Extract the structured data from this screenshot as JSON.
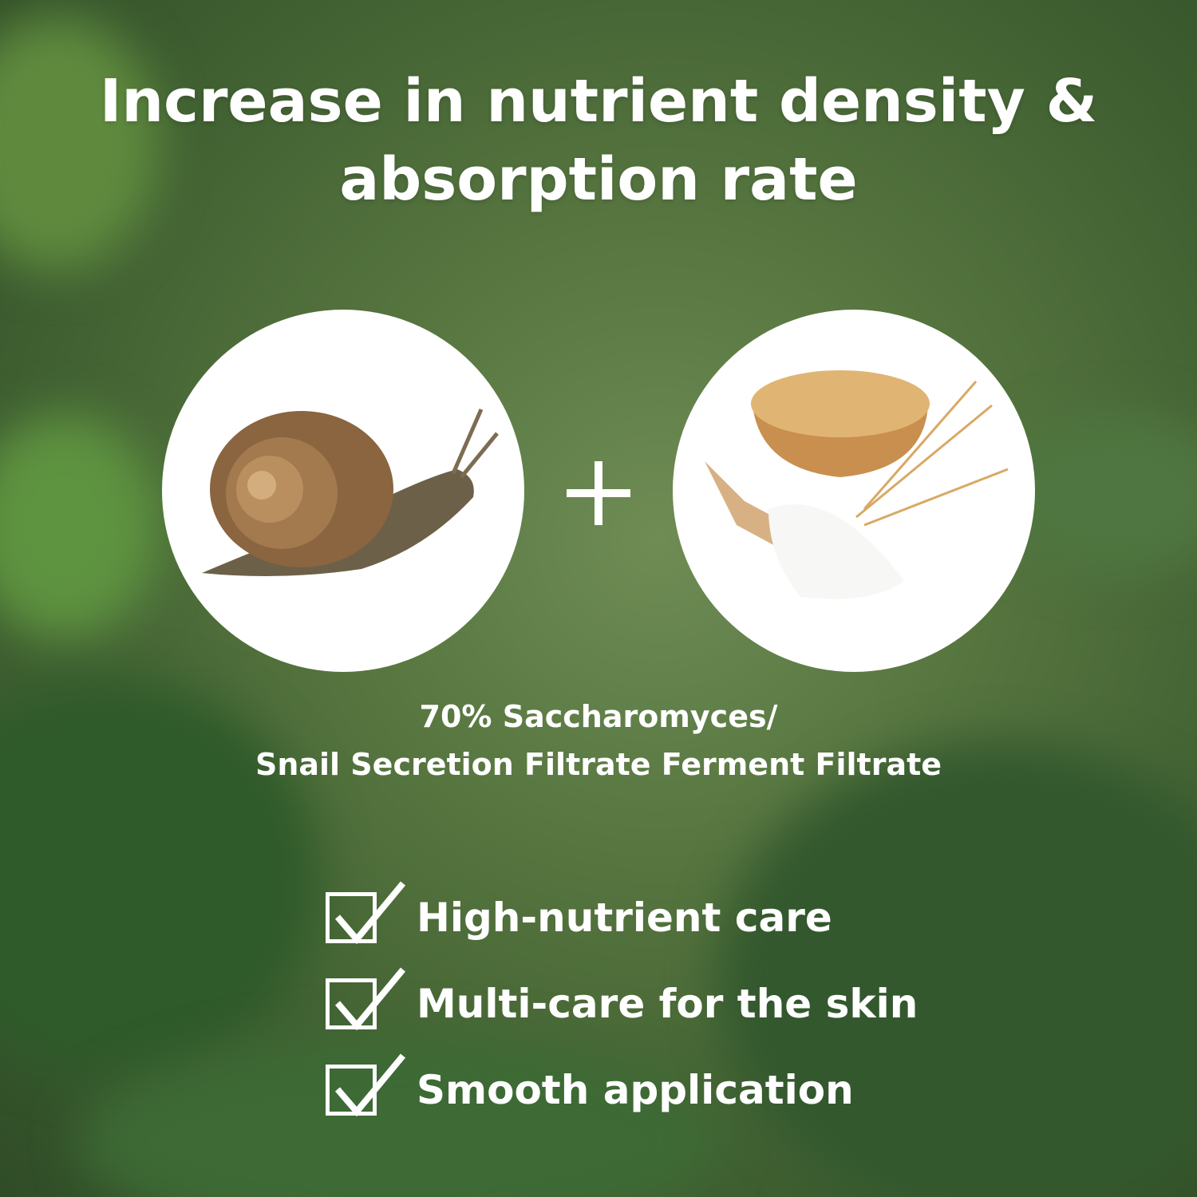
{
  "title": {
    "line1": "Increase in nutrient density &",
    "line2": "absorption rate"
  },
  "ingredients": [
    {
      "icon": "snail-image"
    },
    {
      "icon": "wheat-flour-image"
    }
  ],
  "operator": "plus-icon",
  "caption": {
    "line1": "70% Saccharomyces/",
    "line2": "Snail Secretion Filtrate Ferment Filtrate"
  },
  "benefits": [
    {
      "icon": "checkbox-checked-icon",
      "label": "High-nutrient care"
    },
    {
      "icon": "checkbox-checked-icon",
      "label": "Multi-care for the skin"
    },
    {
      "icon": "checkbox-checked-icon",
      "label": "Smooth application"
    }
  ],
  "colors": {
    "background": "#56753f",
    "text": "#ffffff"
  }
}
